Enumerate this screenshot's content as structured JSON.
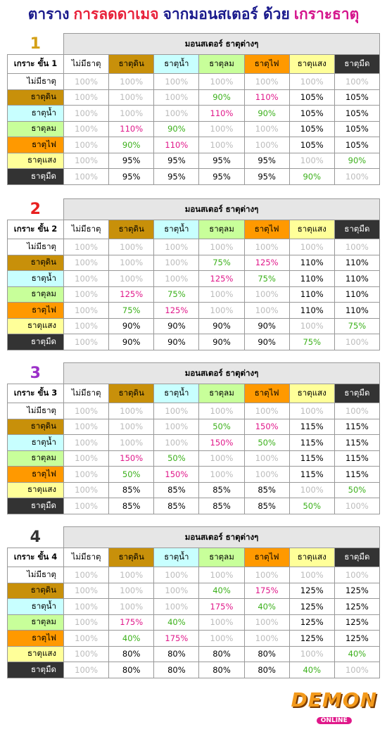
{
  "title": {
    "parts": [
      "ตาราง",
      "การลดดาเมจ",
      "จากมอนสเตอร์ ด้วย",
      "เกราะธาตุ"
    ]
  },
  "tables": [
    {
      "number": "1",
      "header": "มอนสเตอร์ ธาตุต่างๆ",
      "corner": "เกราะ ขั้น 1",
      "columns": [
        "ไม่มีธาตุ",
        "ธาตุดิน",
        "ธาตุน้ำ",
        "ธาตุลม",
        "ธาตุไฟ",
        "ธาตุแสง",
        "ธาตุมืด"
      ],
      "rows": [
        {
          "label": "ไม่มีธาตุ",
          "cells": [
            "100%",
            "100%",
            "100%",
            "100%",
            "100%",
            "100%",
            "100%"
          ]
        },
        {
          "label": "ธาตุดิน",
          "cells": [
            "100%",
            "100%",
            "100%",
            "90%",
            "110%",
            "105%",
            "105%"
          ]
        },
        {
          "label": "ธาตุน้ำ",
          "cells": [
            "100%",
            "100%",
            "100%",
            "110%",
            "90%",
            "105%",
            "105%"
          ]
        },
        {
          "label": "ธาตุลม",
          "cells": [
            "100%",
            "110%",
            "90%",
            "100%",
            "100%",
            "105%",
            "105%"
          ]
        },
        {
          "label": "ธาตุไฟ",
          "cells": [
            "100%",
            "90%",
            "110%",
            "100%",
            "100%",
            "105%",
            "105%"
          ]
        },
        {
          "label": "ธาตุแสง",
          "cells": [
            "100%",
            "95%",
            "95%",
            "95%",
            "95%",
            "100%",
            "90%"
          ]
        },
        {
          "label": "ธาตุมืด",
          "cells": [
            "100%",
            "95%",
            "95%",
            "95%",
            "95%",
            "90%",
            "100%"
          ]
        }
      ]
    },
    {
      "number": "2",
      "header": "มอนสเตอร์ ธาตุต่างๆ",
      "corner": "เกราะ ขั้น 2",
      "columns": [
        "ไม่มีธาตุ",
        "ธาตุดิน",
        "ธาตุน้ำ",
        "ธาตุลม",
        "ธาตุไฟ",
        "ธาตุแสง",
        "ธาตุมืด"
      ],
      "rows": [
        {
          "label": "ไม่มีธาตุ",
          "cells": [
            "100%",
            "100%",
            "100%",
            "100%",
            "100%",
            "100%",
            "100%"
          ]
        },
        {
          "label": "ธาตุดิน",
          "cells": [
            "100%",
            "100%",
            "100%",
            "75%",
            "125%",
            "110%",
            "110%"
          ]
        },
        {
          "label": "ธาตุน้ำ",
          "cells": [
            "100%",
            "100%",
            "100%",
            "125%",
            "75%",
            "110%",
            "110%"
          ]
        },
        {
          "label": "ธาตุลม",
          "cells": [
            "100%",
            "125%",
            "75%",
            "100%",
            "100%",
            "110%",
            "110%"
          ]
        },
        {
          "label": "ธาตุไฟ",
          "cells": [
            "100%",
            "75%",
            "125%",
            "100%",
            "100%",
            "110%",
            "110%"
          ]
        },
        {
          "label": "ธาตุแสง",
          "cells": [
            "100%",
            "90%",
            "90%",
            "90%",
            "90%",
            "100%",
            "75%"
          ]
        },
        {
          "label": "ธาตุมืด",
          "cells": [
            "100%",
            "90%",
            "90%",
            "90%",
            "90%",
            "75%",
            "100%"
          ]
        }
      ]
    },
    {
      "number": "3",
      "header": "มอนสเตอร์ ธาตุต่างๆ",
      "corner": "เกราะ ขั้น 3",
      "columns": [
        "ไม่มีธาตุ",
        "ธาตุดิน",
        "ธาตุน้ำ",
        "ธาตุลม",
        "ธาตุไฟ",
        "ธาตุแสง",
        "ธาตุมืด"
      ],
      "rows": [
        {
          "label": "ไม่มีธาตุ",
          "cells": [
            "100%",
            "100%",
            "100%",
            "100%",
            "100%",
            "100%",
            "100%"
          ]
        },
        {
          "label": "ธาตุดิน",
          "cells": [
            "100%",
            "100%",
            "100%",
            "50%",
            "150%",
            "115%",
            "115%"
          ]
        },
        {
          "label": "ธาตุน้ำ",
          "cells": [
            "100%",
            "100%",
            "100%",
            "150%",
            "50%",
            "115%",
            "115%"
          ]
        },
        {
          "label": "ธาตุลม",
          "cells": [
            "100%",
            "150%",
            "50%",
            "100%",
            "100%",
            "115%",
            "115%"
          ]
        },
        {
          "label": "ธาตุไฟ",
          "cells": [
            "100%",
            "50%",
            "150%",
            "100%",
            "100%",
            "115%",
            "115%"
          ]
        },
        {
          "label": "ธาตุแสง",
          "cells": [
            "100%",
            "85%",
            "85%",
            "85%",
            "85%",
            "100%",
            "50%"
          ]
        },
        {
          "label": "ธาตุมืด",
          "cells": [
            "100%",
            "85%",
            "85%",
            "85%",
            "85%",
            "50%",
            "100%"
          ]
        }
      ]
    },
    {
      "number": "4",
      "header": "มอนสเตอร์ ธาตุต่างๆ",
      "corner": "เกราะ ขั้น 4",
      "columns": [
        "ไม่มีธาตุ",
        "ธาตุดิน",
        "ธาตุน้ำ",
        "ธาตุลม",
        "ธาตุไฟ",
        "ธาตุแสง",
        "ธาตุมืด"
      ],
      "rows": [
        {
          "label": "ไม่มีธาตุ",
          "cells": [
            "100%",
            "100%",
            "100%",
            "100%",
            "100%",
            "100%",
            "100%"
          ]
        },
        {
          "label": "ธาตุดิน",
          "cells": [
            "100%",
            "100%",
            "100%",
            "40%",
            "175%",
            "125%",
            "125%"
          ]
        },
        {
          "label": "ธาตุน้ำ",
          "cells": [
            "100%",
            "100%",
            "100%",
            "175%",
            "40%",
            "125%",
            "125%"
          ]
        },
        {
          "label": "ธาตุลม",
          "cells": [
            "100%",
            "175%",
            "40%",
            "100%",
            "100%",
            "125%",
            "125%"
          ]
        },
        {
          "label": "ธาตุไฟ",
          "cells": [
            "100%",
            "40%",
            "175%",
            "100%",
            "100%",
            "125%",
            "125%"
          ]
        },
        {
          "label": "ธาตุแสง",
          "cells": [
            "100%",
            "80%",
            "80%",
            "80%",
            "80%",
            "100%",
            "40%"
          ]
        },
        {
          "label": "ธาตุมืด",
          "cells": [
            "100%",
            "80%",
            "80%",
            "80%",
            "80%",
            "40%",
            "100%"
          ]
        }
      ]
    }
  ],
  "logo": {
    "name": "DEMON",
    "tagline": "ONLINE"
  }
}
